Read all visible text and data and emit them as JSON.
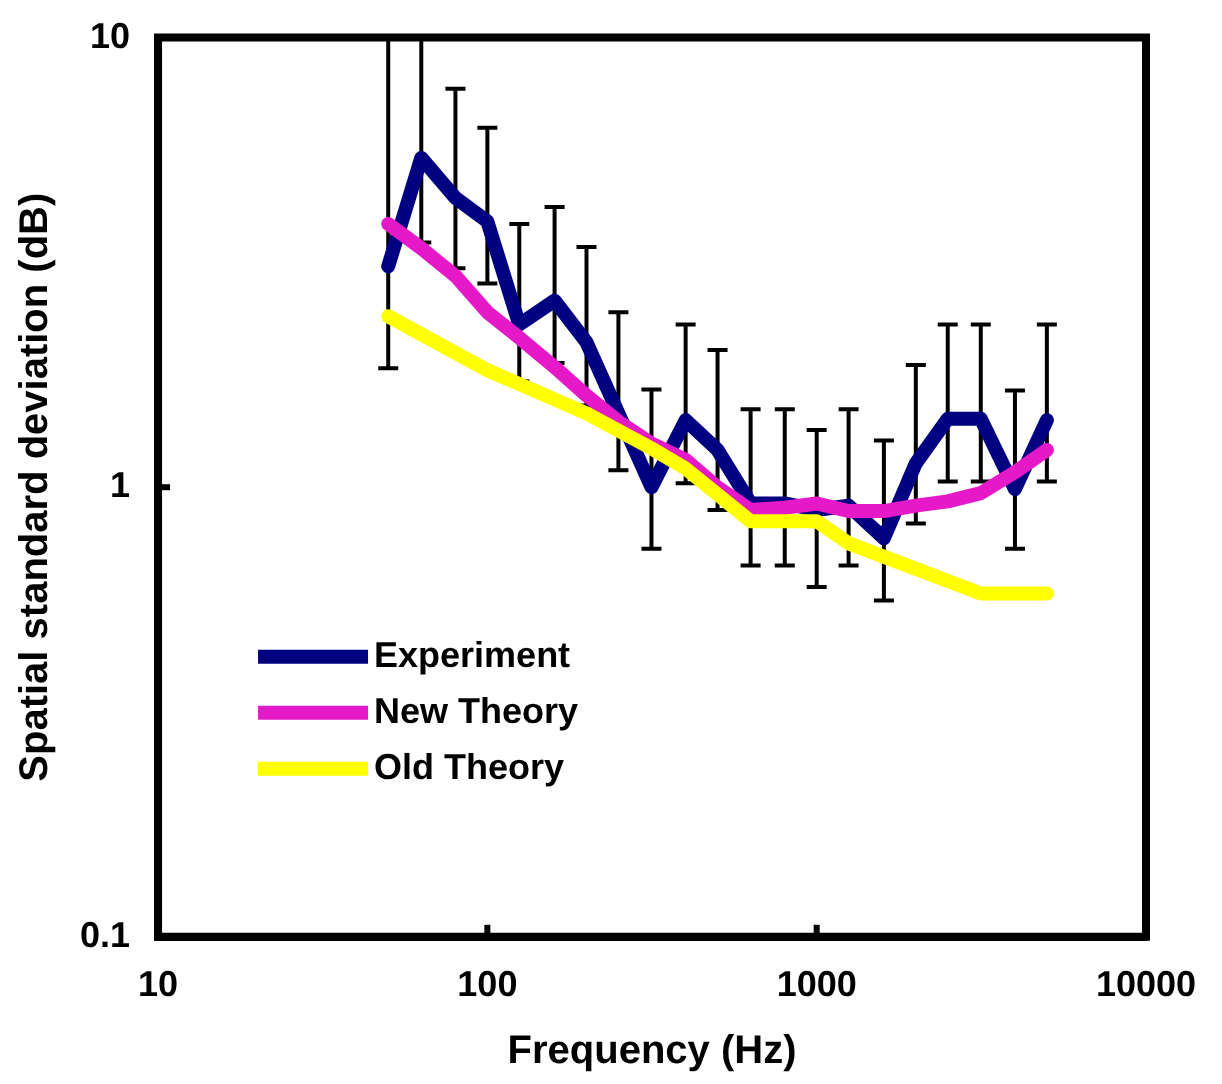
{
  "chart_data": {
    "type": "line",
    "xlabel": "Frequency (Hz)",
    "ylabel": "Spatial standard deviation (dB)",
    "x": [
      50,
      63,
      80,
      100,
      125,
      160,
      200,
      250,
      315,
      400,
      500,
      630,
      800,
      1000,
      1250,
      1600,
      2000,
      2500,
      3150,
      4000,
      5000
    ],
    "series": [
      {
        "name": "Experiment",
        "color": "#000080",
        "values": [
          3.1,
          5.4,
          4.4,
          3.9,
          2.3,
          2.6,
          2.1,
          1.46,
          1.0,
          1.41,
          1.21,
          0.92,
          0.92,
          0.89,
          0.91,
          0.77,
          1.13,
          1.42,
          1.42,
          0.99,
          1.41
        ],
        "errors": [
          [
            1.84,
            10
          ],
          [
            3.5,
            10
          ],
          [
            3.07,
            7.7
          ],
          [
            2.84,
            6.3
          ],
          [
            1.72,
            3.85
          ],
          [
            1.89,
            4.2
          ],
          [
            1.52,
            3.42
          ],
          [
            1.09,
            2.45
          ],
          [
            0.73,
            1.65
          ],
          [
            1.02,
            2.3
          ],
          [
            0.89,
            2.02
          ],
          [
            0.67,
            1.49
          ],
          [
            0.67,
            1.49
          ],
          [
            0.6,
            1.34
          ],
          [
            0.67,
            1.49
          ],
          [
            0.56,
            1.27
          ],
          [
            0.83,
            1.87
          ],
          [
            1.03,
            2.3
          ],
          [
            1.03,
            2.3
          ],
          [
            0.73,
            1.64
          ],
          [
            1.03,
            2.3
          ]
        ]
      },
      {
        "name": "New Theory",
        "color": "#e619c8",
        "values": [
          3.85,
          3.4,
          2.95,
          2.45,
          2.15,
          1.85,
          1.6,
          1.4,
          1.25,
          1.15,
          1.0,
          0.89,
          0.9,
          0.92,
          0.885,
          0.885,
          0.91,
          0.93,
          0.97,
          1.08,
          1.21
        ]
      },
      {
        "name": "Old Theory",
        "color": "#ffff00",
        "x": [
          50,
          100,
          200,
          315,
          400,
          630,
          1000,
          1250,
          3150,
          5000
        ],
        "values": [
          2.4,
          1.82,
          1.46,
          1.22,
          1.1,
          0.84,
          0.84,
          0.75,
          0.58,
          0.58
        ]
      }
    ],
    "log": "xy",
    "xlim": [
      10,
      10000
    ],
    "xticks": [
      10,
      100,
      1000,
      10000
    ],
    "ylim": [
      0.1,
      10
    ],
    "yticks": [
      0.1,
      1,
      10
    ],
    "grid": false,
    "legend": "bottom left",
    "marker": "none",
    "line_style": "solid"
  }
}
